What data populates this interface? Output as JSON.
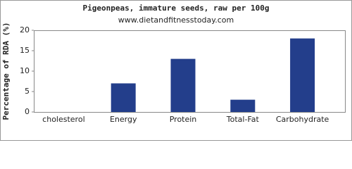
{
  "chart_data": {
    "type": "bar",
    "title": "Pigeonpeas, immature seeds, raw per 100g",
    "subtitle": "www.dietandfitnesstoday.com",
    "y_label": "Percentage of RDA (%)",
    "categories": [
      "cholesterol",
      "Energy",
      "Protein",
      "Total-Fat",
      "Carbohydrate"
    ],
    "values": [
      0,
      7,
      13,
      3,
      18
    ],
    "color": "#233e8b",
    "ylim": [
      0,
      20
    ],
    "yticks": [
      0,
      5,
      10,
      15,
      20
    ],
    "grid": false
  }
}
